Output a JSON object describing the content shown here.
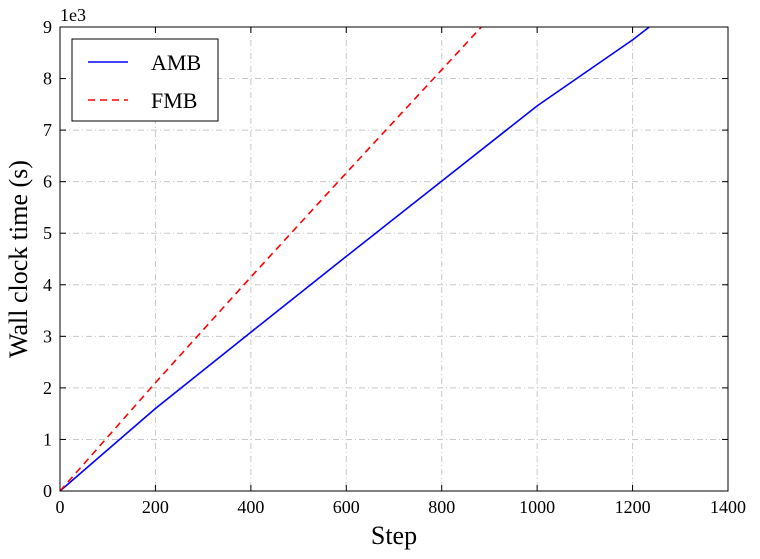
{
  "chart_data": {
    "type": "line",
    "xlabel": "Step",
    "ylabel": "Wall clock time (s)",
    "y_scale_label": "1e3",
    "xlim": [
      0,
      1400
    ],
    "ylim": [
      0,
      9
    ],
    "x_ticks": [
      0,
      200,
      400,
      600,
      800,
      1000,
      1200,
      1400
    ],
    "y_ticks": [
      0,
      1,
      2,
      3,
      4,
      5,
      6,
      7,
      8,
      9
    ],
    "grid": true,
    "legend_position": "top-left",
    "series": [
      {
        "name": "AMB",
        "color": "#0000ff",
        "linestyle": "solid",
        "x": [
          0,
          200,
          400,
          600,
          800,
          1000,
          1200,
          1235
        ],
        "y": [
          0,
          1.6,
          3.08,
          4.55,
          6.01,
          7.47,
          8.75,
          9.0
        ]
      },
      {
        "name": "FMB",
        "color": "#ff0000",
        "linestyle": "dashed",
        "x": [
          0,
          200,
          400,
          600,
          800,
          883
        ],
        "y": [
          0,
          2.1,
          4.15,
          6.17,
          8.17,
          9.0
        ]
      }
    ]
  }
}
